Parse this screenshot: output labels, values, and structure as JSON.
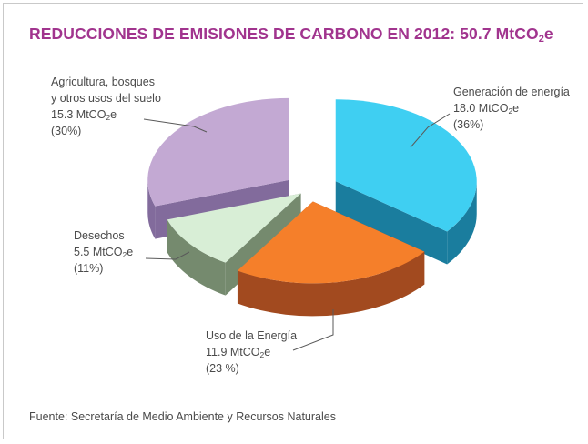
{
  "chart_data": {
    "type": "pie",
    "title": "REDUCCIONES DE EMISIONES DE CARBONO EN 2012: 50.7 MtCO",
    "title_sub": "2",
    "title_tail": "e",
    "unit": "MtCO",
    "unit_sub": "2",
    "unit_tail": "e",
    "slices": [
      {
        "name": "Generación de energía",
        "value": 18.0,
        "value_text": "18.0 MtCO",
        "percent_text": "(36%)",
        "color": "#3fcff2",
        "side_color": "#1a7d9e"
      },
      {
        "name": "Uso de la Energía",
        "value": 11.9,
        "value_text": "11.9 MtCO",
        "percent_text": "(23 %)",
        "color": "#f57f2a",
        "side_color": "#a24a1f"
      },
      {
        "name": "Desechos",
        "value": 5.5,
        "value_text": "5.5 MtCO",
        "percent_text": "(11%)",
        "color": "#d8eed6",
        "side_color": "#758a6e"
      },
      {
        "name": "Agricultura, bosques y otros usos del suelo",
        "name_lines": [
          "Agricultura, bosques",
          "y otros usos del suelo"
        ],
        "value": 15.3,
        "value_text": "15.3 MtCO",
        "percent_text": "(30%)",
        "color": "#c3a9d3",
        "side_color": "#826b9c"
      }
    ],
    "source": "Fuente: Secretaría de Medio Ambiente y Recursos Naturales"
  }
}
